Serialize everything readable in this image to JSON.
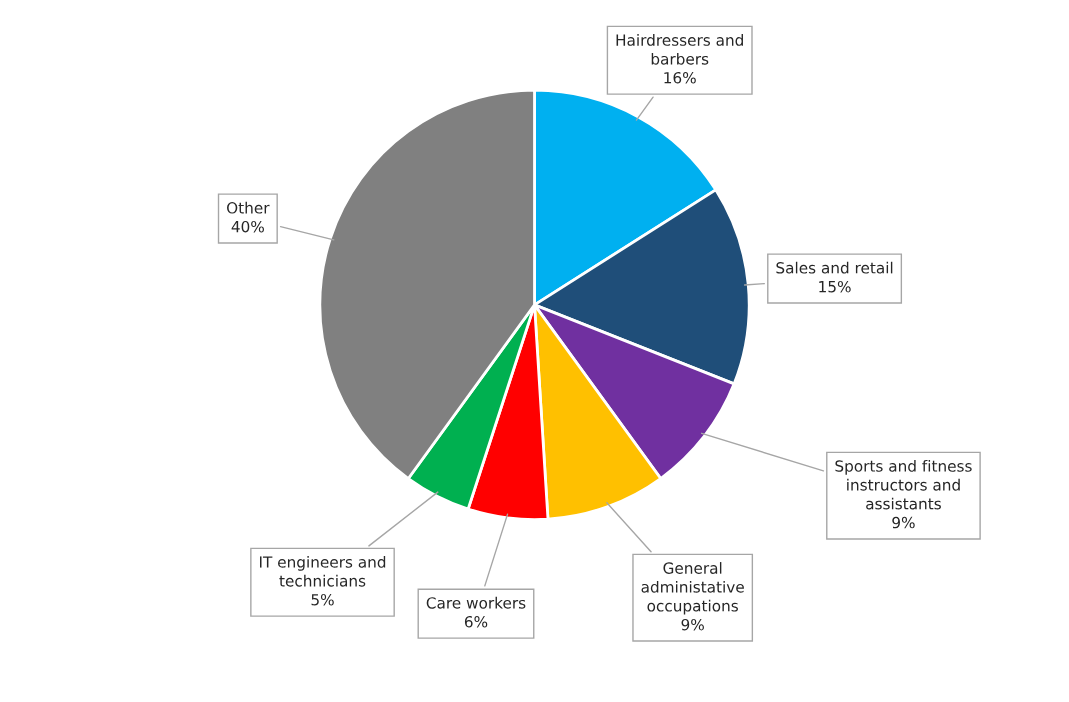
{
  "chart_data": {
    "type": "pie",
    "categories": [
      "Hairdressers and\nbarbers",
      "Sales and retail",
      "Sports and fitness\ninstructors and\nassistants",
      "General\nadministative\noccupations",
      "Care workers",
      "IT engineers and\ntechnicians",
      "Other"
    ],
    "values": [
      16,
      15,
      9,
      9,
      6,
      5,
      40
    ],
    "value_labels": [
      "16%",
      "15%",
      "9%",
      "9%",
      "6%",
      "5%",
      "40%"
    ],
    "colors": [
      "#00b0f0",
      "#1f4e79",
      "#7030a0",
      "#ffc000",
      "#ff0000",
      "#00b050",
      "#808080"
    ]
  }
}
